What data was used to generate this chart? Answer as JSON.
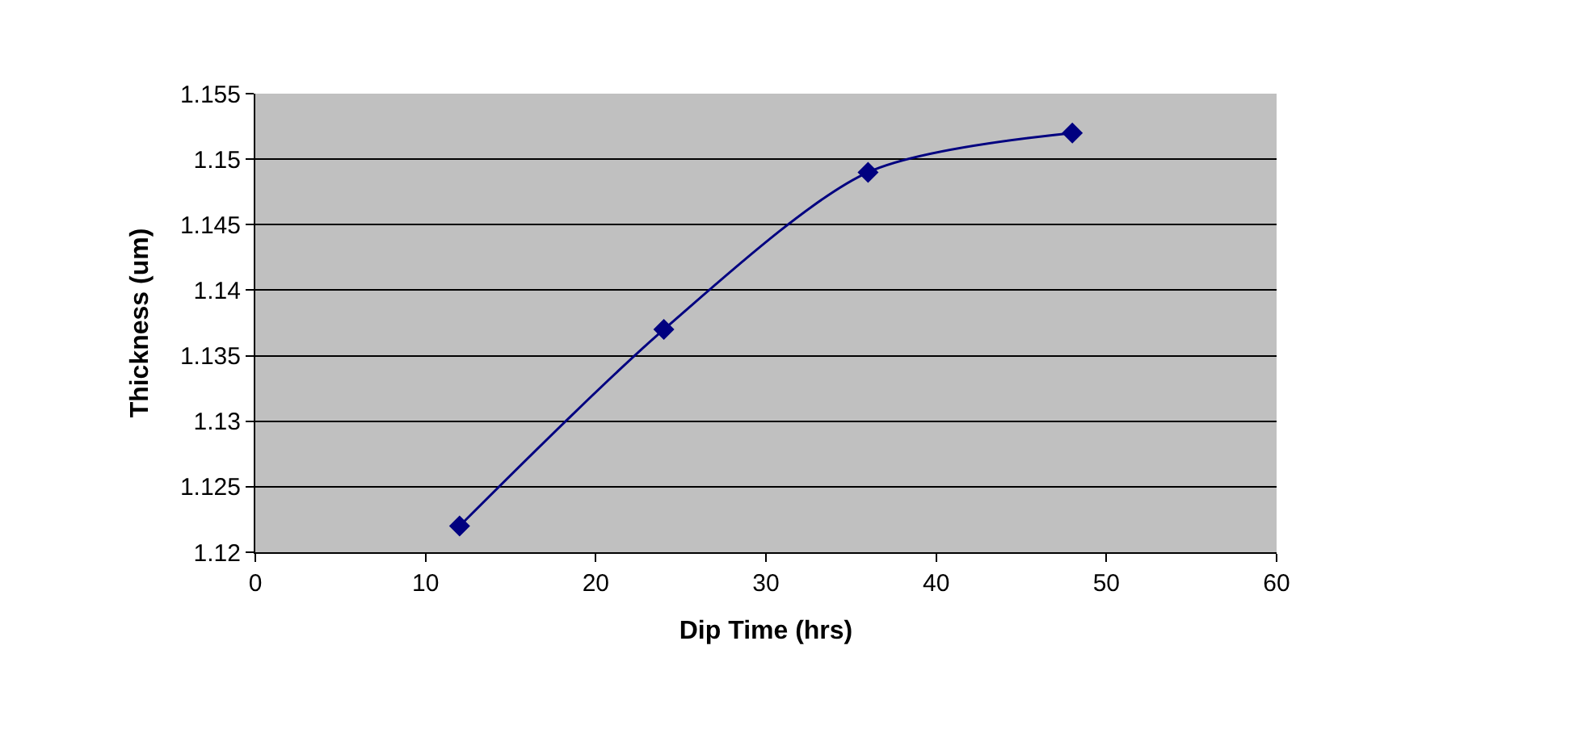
{
  "chart_data": {
    "type": "line",
    "xlabel": "Dip Time (hrs)",
    "ylabel": "Thickness (um)",
    "x": [
      12,
      24,
      36,
      48
    ],
    "series": [
      {
        "color": "#000080",
        "values": [
          1.122,
          1.137,
          1.149,
          1.152
        ]
      }
    ],
    "xlim": [
      0,
      60
    ],
    "xticks": [
      0,
      10,
      20,
      30,
      40,
      50,
      60
    ],
    "ylim": [
      1.12,
      1.155
    ],
    "yticks": [
      1.12,
      1.125,
      1.13,
      1.135,
      1.14,
      1.145,
      1.15,
      1.155
    ],
    "grid": "y",
    "legend": false,
    "marker": "diamond",
    "line_style": "solid"
  }
}
